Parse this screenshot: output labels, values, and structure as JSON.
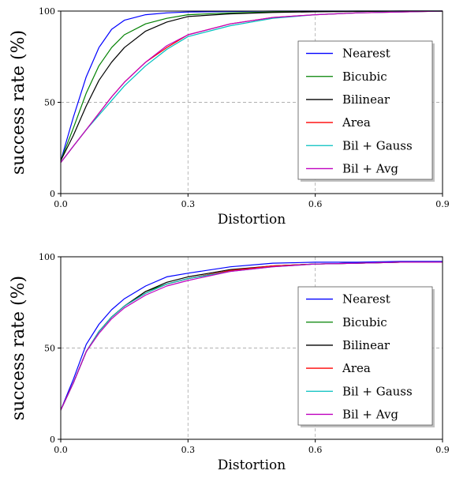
{
  "chart_data": [
    {
      "type": "line",
      "xlabel": "Distortion",
      "ylabel": "success rate (%)",
      "xlim": [
        0.0,
        0.9
      ],
      "ylim": [
        0,
        100
      ],
      "xticks": [
        "0.0",
        "0.3",
        "0.6",
        "0.9"
      ],
      "yticks": [
        "0",
        "50",
        "100"
      ],
      "grid": true,
      "legend_position": "bottom-right",
      "x": [
        0.0,
        0.03,
        0.06,
        0.09,
        0.12,
        0.15,
        0.2,
        0.25,
        0.3,
        0.4,
        0.5,
        0.6,
        0.7,
        0.8,
        0.9
      ],
      "series": [
        {
          "name": "Nearest",
          "color": "#0000ff",
          "values": [
            18,
            42,
            64,
            80,
            90,
            95,
            98,
            99,
            99.5,
            99.8,
            100,
            100,
            100,
            100,
            100
          ]
        },
        {
          "name": "Bicubic",
          "color": "#008000",
          "values": [
            18,
            36,
            55,
            70,
            80,
            87,
            93,
            96,
            98,
            99,
            99.5,
            99.8,
            100,
            100,
            100
          ]
        },
        {
          "name": "Bilinear",
          "color": "#000000",
          "values": [
            18,
            32,
            48,
            62,
            72,
            80,
            89,
            94,
            97,
            98.5,
            99.2,
            99.6,
            99.8,
            100,
            100
          ]
        },
        {
          "name": "Area",
          "color": "#ff0000",
          "values": [
            17,
            26,
            35,
            44,
            53,
            61,
            72,
            80,
            87,
            93,
            96.5,
            98,
            99,
            99.5,
            100
          ]
        },
        {
          "name": "Bil + Gauss",
          "color": "#00bfbf",
          "values": [
            17,
            26,
            35,
            43,
            51,
            59,
            70,
            79,
            86,
            92,
            96,
            98,
            99,
            99.5,
            100
          ]
        },
        {
          "name": "Bil + Avg",
          "color": "#bf00bf",
          "values": [
            17,
            26,
            35,
            44,
            53,
            61,
            72,
            81,
            87,
            93,
            96.5,
            98,
            99,
            99.5,
            100
          ]
        }
      ]
    },
    {
      "type": "line",
      "xlabel": "Distortion",
      "ylabel": "success rate (%)",
      "xlim": [
        0.0,
        0.9
      ],
      "ylim": [
        0,
        100
      ],
      "xticks": [
        "0.0",
        "0.3",
        "0.6",
        "0.9"
      ],
      "yticks": [
        "0",
        "50",
        "100"
      ],
      "grid": true,
      "legend_position": "bottom-right",
      "x": [
        0.0,
        0.03,
        0.06,
        0.09,
        0.12,
        0.15,
        0.2,
        0.25,
        0.3,
        0.4,
        0.5,
        0.6,
        0.7,
        0.8,
        0.9
      ],
      "series": [
        {
          "name": "Nearest",
          "color": "#0000ff",
          "values": [
            16,
            33,
            52,
            63,
            71,
            77,
            84,
            89,
            91,
            94.5,
            96.5,
            97,
            97,
            97.5,
            97.5
          ]
        },
        {
          "name": "Bicubic",
          "color": "#008000",
          "values": [
            16,
            31,
            48,
            59,
            67,
            73,
            81,
            85,
            88,
            92.5,
            95,
            96,
            96.5,
            97,
            97
          ]
        },
        {
          "name": "Bilinear",
          "color": "#000000",
          "values": [
            16,
            31,
            48,
            59,
            67,
            73,
            81,
            86,
            89,
            93,
            95,
            96,
            96.5,
            97,
            97
          ]
        },
        {
          "name": "Area",
          "color": "#ff0000",
          "values": [
            16,
            31,
            48,
            59,
            67,
            73,
            80,
            85,
            88,
            92.5,
            95,
            96,
            96.5,
            97,
            97
          ]
        },
        {
          "name": "Bil + Gauss",
          "color": "#00bfbf",
          "values": [
            16,
            31,
            48,
            59,
            67,
            73,
            80,
            85,
            88,
            92,
            94.5,
            96,
            96.5,
            97,
            97
          ]
        },
        {
          "name": "Bil + Avg",
          "color": "#bf00bf",
          "values": [
            16,
            31,
            48,
            58,
            66,
            72,
            79,
            84,
            87,
            92,
            94.5,
            96,
            96.5,
            97,
            97
          ]
        }
      ]
    }
  ]
}
